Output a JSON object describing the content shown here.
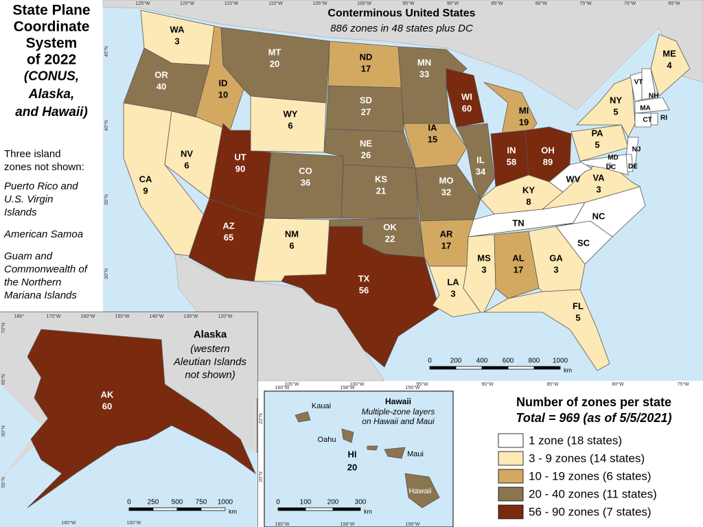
{
  "map": {
    "title_lines": [
      "State Plane",
      "Coordinate",
      "System",
      "of 2022"
    ],
    "subtitle_lines": [
      "(CONUS,",
      "Alaska,",
      "and Hawaii)"
    ],
    "notes_heading_lines": [
      "Three island",
      "zones not shown:"
    ],
    "notes": [
      [
        "Puerto Rico and",
        "U.S. Virgin",
        "Islands"
      ],
      [
        "American Samoa"
      ],
      [
        "Guam and",
        "Commonwealth of",
        "the Northern",
        "Mariana Islands"
      ]
    ],
    "conus": {
      "title": "Conterminous United States",
      "subtitle": "886 zones in 48 states plus DC",
      "top_longitudes": [
        "125°W",
        "120°W",
        "115°W",
        "110°W",
        "105°W",
        "100°W",
        "95°W",
        "90°W",
        "85°W",
        "80°W",
        "75°W",
        "70°W",
        "65°W"
      ],
      "bottom_longitudes": [
        "105°W",
        "100°W",
        "95°W",
        "90°W",
        "85°W",
        "80°W",
        "75°W"
      ],
      "left_latitudes": [
        "45°N",
        "40°N",
        "35°N",
        "30°N"
      ],
      "scale": [
        0,
        200,
        400,
        600,
        800,
        1000
      ],
      "scale_unit": "km",
      "states": [
        {
          "abbr": "WA",
          "zones": 3,
          "color": "#fde9b6"
        },
        {
          "abbr": "OR",
          "zones": 40,
          "color": "#8b7551"
        },
        {
          "abbr": "CA",
          "zones": 9,
          "color": "#fde9b6"
        },
        {
          "abbr": "NV",
          "zones": 6,
          "color": "#fde9b6"
        },
        {
          "abbr": "ID",
          "zones": 10,
          "color": "#d3a962"
        },
        {
          "abbr": "MT",
          "zones": 20,
          "color": "#8b7551"
        },
        {
          "abbr": "WY",
          "zones": 6,
          "color": "#fde9b6"
        },
        {
          "abbr": "UT",
          "zones": 90,
          "color": "#7a2a0f"
        },
        {
          "abbr": "AZ",
          "zones": 65,
          "color": "#7a2a0f"
        },
        {
          "abbr": "CO",
          "zones": 36,
          "color": "#8b7551"
        },
        {
          "abbr": "NM",
          "zones": 6,
          "color": "#fde9b6"
        },
        {
          "abbr": "ND",
          "zones": 17,
          "color": "#d3a962"
        },
        {
          "abbr": "SD",
          "zones": 27,
          "color": "#8b7551"
        },
        {
          "abbr": "NE",
          "zones": 26,
          "color": "#8b7551"
        },
        {
          "abbr": "KS",
          "zones": 21,
          "color": "#8b7551"
        },
        {
          "abbr": "OK",
          "zones": 22,
          "color": "#8b7551"
        },
        {
          "abbr": "TX",
          "zones": 56,
          "color": "#7a2a0f"
        },
        {
          "abbr": "MN",
          "zones": 33,
          "color": "#8b7551"
        },
        {
          "abbr": "IA",
          "zones": 15,
          "color": "#d3a962"
        },
        {
          "abbr": "MO",
          "zones": 32,
          "color": "#8b7551"
        },
        {
          "abbr": "AR",
          "zones": 17,
          "color": "#d3a962"
        },
        {
          "abbr": "LA",
          "zones": 3,
          "color": "#fde9b6"
        },
        {
          "abbr": "WI",
          "zones": 60,
          "color": "#7a2a0f"
        },
        {
          "abbr": "IL",
          "zones": 34,
          "color": "#8b7551"
        },
        {
          "abbr": "MI",
          "zones": 19,
          "color": "#d3a962"
        },
        {
          "abbr": "IN",
          "zones": 58,
          "color": "#7a2a0f"
        },
        {
          "abbr": "OH",
          "zones": 89,
          "color": "#7a2a0f"
        },
        {
          "abbr": "KY",
          "zones": 8,
          "color": "#fde9b6"
        },
        {
          "abbr": "TN",
          "color": "#ffffff"
        },
        {
          "abbr": "MS",
          "zones": 3,
          "color": "#fde9b6"
        },
        {
          "abbr": "AL",
          "zones": 17,
          "color": "#d3a962"
        },
        {
          "abbr": "GA",
          "zones": 3,
          "color": "#fde9b6"
        },
        {
          "abbr": "FL",
          "zones": 5,
          "color": "#fde9b6"
        },
        {
          "abbr": "SC",
          "color": "#ffffff"
        },
        {
          "abbr": "NC",
          "color": "#ffffff"
        },
        {
          "abbr": "VA",
          "zones": 3,
          "color": "#fde9b6"
        },
        {
          "abbr": "WV",
          "color": "#ffffff"
        },
        {
          "abbr": "PA",
          "zones": 5,
          "color": "#fde9b6"
        },
        {
          "abbr": "NY",
          "zones": 5,
          "color": "#fde9b6"
        },
        {
          "abbr": "NJ",
          "color": "#ffffff"
        },
        {
          "abbr": "MD",
          "color": "#ffffff"
        },
        {
          "abbr": "DC",
          "color": "#ffffff"
        },
        {
          "abbr": "DE",
          "color": "#ffffff"
        },
        {
          "abbr": "VT",
          "color": "#ffffff"
        },
        {
          "abbr": "NH",
          "color": "#ffffff"
        },
        {
          "abbr": "MA",
          "color": "#ffffff"
        },
        {
          "abbr": "CT",
          "color": "#ffffff"
        },
        {
          "abbr": "RI",
          "color": "#ffffff"
        },
        {
          "abbr": "ME",
          "zones": 4,
          "color": "#fde9b6"
        }
      ]
    },
    "alaska": {
      "title": "Alaska",
      "note_lines": [
        "(western",
        "Aleutian Islands",
        "not shown)"
      ],
      "top_longitudes": [
        "180°",
        "170°W",
        "160°W",
        "150°W",
        "140°W",
        "130°W",
        "120°W"
      ],
      "bottom_longitudes": [
        "160°W",
        "150°W"
      ],
      "left_latitudes": [
        "70°N",
        "65°N",
        "60°N",
        "55°N"
      ],
      "scale": [
        0,
        250,
        500,
        750,
        1000
      ],
      "scale_unit": "km",
      "state": {
        "abbr": "AK",
        "zones": 60,
        "color": "#7a2a0f"
      }
    },
    "hawaii": {
      "title": "Hawaii",
      "note_lines": [
        "Multiple-zone layers",
        "on Hawaii and Maui"
      ],
      "top_longitudes": [
        "160°W",
        "158°W",
        "156°W"
      ],
      "bottom_longitudes": [
        "160°W",
        "158°W",
        "156°W"
      ],
      "left_latitudes": [
        "22°N",
        "20°N"
      ],
      "islands": [
        "Kauai",
        "Oahu",
        "Maui",
        "Hawaii"
      ],
      "scale": [
        0,
        100,
        200,
        300
      ],
      "scale_unit": "km",
      "state": {
        "abbr": "HI",
        "zones": 20,
        "color": "#8b7551"
      }
    },
    "legend": {
      "title": "Number of zones per state",
      "subtitle": "Total = 969 (as of 5/5/2021)",
      "items": [
        {
          "label": "1 zone (18 states)",
          "color": "#ffffff"
        },
        {
          "label": "3 - 9 zones (14 states)",
          "color": "#fde9b6"
        },
        {
          "label": "10 - 19 zones (6 states)",
          "color": "#d3a962"
        },
        {
          "label": "20 - 40 zones (11 states)",
          "color": "#8b7551"
        },
        {
          "label": "56 - 90 zones (7 states)",
          "color": "#7a2a0f"
        }
      ]
    }
  }
}
